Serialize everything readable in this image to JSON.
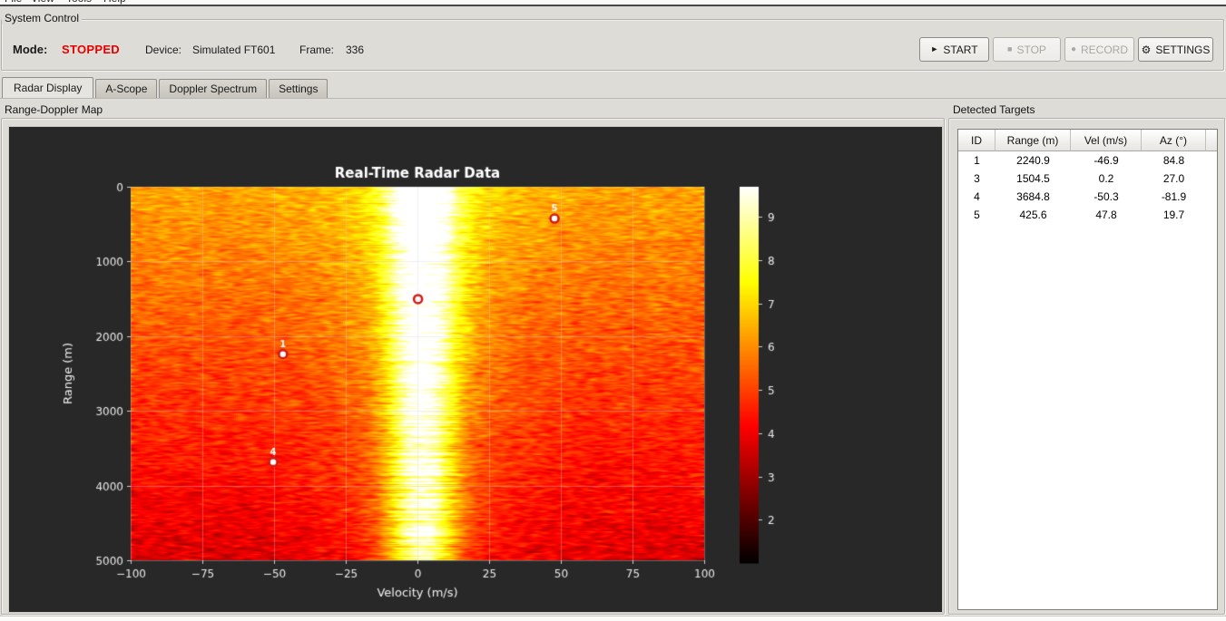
{
  "menu": {
    "items": [
      "File",
      "View",
      "Tools",
      "Help"
    ]
  },
  "system_control": {
    "title": "System Control",
    "mode_label": "Mode:",
    "mode_value": "STOPPED",
    "mode_color": "#e60000",
    "device_label": "Device:",
    "device_value": "Simulated FT601",
    "frame_label": "Frame:",
    "frame_value": "336",
    "buttons": {
      "start": "START",
      "stop": "STOP",
      "record": "RECORD",
      "settings": "SETTINGS"
    },
    "icons": {
      "start": "►",
      "stop": "■",
      "record": "●",
      "settings": "⚙"
    },
    "buttons_enabled": {
      "start": true,
      "stop": false,
      "record": false,
      "settings": true
    }
  },
  "tabs": [
    {
      "label": "Radar Display",
      "active": true
    },
    {
      "label": "A-Scope",
      "active": false
    },
    {
      "label": "Doppler Spectrum",
      "active": false
    },
    {
      "label": "Settings",
      "active": false
    }
  ],
  "radar_panel": {
    "title": "Range-Doppler Map"
  },
  "targets_panel": {
    "title": "Detected Targets",
    "columns": [
      "ID",
      "Range (m)",
      "Vel (m/s)",
      "Az (°)"
    ],
    "rows": [
      [
        "1",
        "2240.9",
        "-46.9",
        "84.8"
      ],
      [
        "3",
        "1504.5",
        "0.2",
        "27.0"
      ],
      [
        "4",
        "3684.8",
        "-50.3",
        "-81.9"
      ],
      [
        "5",
        "425.6",
        "47.8",
        "19.7"
      ]
    ]
  },
  "chart_data": {
    "type": "heatmap",
    "title": "Real-Time Radar Data",
    "xlabel": "Velocity (m/s)",
    "ylabel": "Range (m)",
    "xlim": [
      -100,
      100
    ],
    "ylim_top_to_bottom": [
      0,
      5000
    ],
    "xtick_values": [
      -100,
      -75,
      -50,
      -25,
      0,
      25,
      50,
      75,
      100
    ],
    "xtick_labels": [
      "−100",
      "−75",
      "−50",
      "−25",
      "0",
      "25",
      "50",
      "75",
      "100"
    ],
    "ytick_values": [
      0,
      1000,
      2000,
      3000,
      4000,
      5000
    ],
    "ytick_labels": [
      "0",
      "1000",
      "2000",
      "3000",
      "4000",
      "5000"
    ],
    "grid": true,
    "colormap": "hot",
    "plot_bg": "#282828",
    "text_color": "#eaeaea",
    "colorbar": {
      "vmin": 1.0,
      "vmax": 9.7,
      "tick_values": [
        2,
        3,
        4,
        5,
        6,
        7,
        8,
        9
      ],
      "tick_labels": [
        "2",
        "3",
        "4",
        "5",
        "6",
        "7",
        "8",
        "9"
      ]
    },
    "clutter_band": {
      "center_velocity_mps": 1.5,
      "sigma_mps": 8,
      "glow_sigma_mps": 22
    },
    "noise_seed": 1234,
    "targets": [
      {
        "id": "1",
        "velocity_mps": -46.9,
        "range_m": 2240.9
      },
      {
        "id": "3",
        "velocity_mps": 0.2,
        "range_m": 1504.5
      },
      {
        "id": "4",
        "velocity_mps": -50.3,
        "range_m": 3684.8
      },
      {
        "id": "5",
        "velocity_mps": 47.8,
        "range_m": 425.6
      }
    ],
    "marker": {
      "fill": "#ffffff",
      "ring": "#cf1c15"
    }
  }
}
